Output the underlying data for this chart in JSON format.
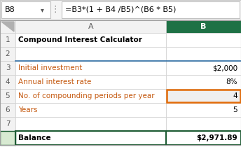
{
  "formula_bar_cell": "B8",
  "formula_bar_formula": "=B3*(1 + B4 /B5)^(B6 * B5)",
  "rows": [
    {
      "row": 1,
      "col_a": "Compound Interest Calculator",
      "col_b": "",
      "bold_a": true,
      "bold_b": false,
      "black_a": true
    },
    {
      "row": 2,
      "col_a": "",
      "col_b": "",
      "bold_a": false,
      "bold_b": false,
      "black_a": false
    },
    {
      "row": 3,
      "col_a": "Initial investment",
      "col_b": "$2,000",
      "bold_a": false,
      "bold_b": false,
      "black_a": false
    },
    {
      "row": 4,
      "col_a": "Annual interest rate",
      "col_b": "8%",
      "bold_a": false,
      "bold_b": false,
      "black_a": false
    },
    {
      "row": 5,
      "col_a": "No. of compounding periods per year",
      "col_b": "4",
      "bold_a": false,
      "bold_b": false,
      "black_a": false,
      "highlight_b": true
    },
    {
      "row": 6,
      "col_a": "Years",
      "col_b": "5",
      "bold_a": false,
      "bold_b": false,
      "black_a": false
    },
    {
      "row": 7,
      "col_a": "",
      "col_b": "",
      "bold_a": false,
      "bold_b": false,
      "black_a": false
    },
    {
      "row": 8,
      "col_a": "Balance",
      "col_b": "$2,971.89",
      "bold_a": true,
      "bold_b": true,
      "black_a": true
    }
  ],
  "green_header_bg": "#1e7145",
  "orange_label": "#c55a11",
  "orange_border": "#e36c09",
  "dark_green_border": "#1e5c34",
  "row_num_bg": "#f2f2f2",
  "row_num_color": "#595959",
  "col_header_bg": "#f2f2f2",
  "col_header_color": "#595959",
  "cell_border": "#d0d0d0",
  "bg": "#ffffff",
  "formula_bar_bg": "#f5f5f5",
  "dark_top_border": "#2e6da4",
  "row8_num_bold": true,
  "col5_b_bg": "#efefef"
}
